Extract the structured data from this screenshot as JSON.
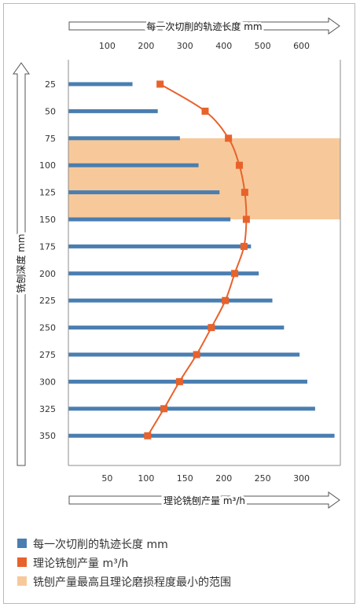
{
  "chart_data": {
    "type": "bar+line",
    "y_axis": {
      "label": "铣刨深度 mm",
      "ticks": [
        25,
        50,
        75,
        100,
        125,
        150,
        175,
        200,
        225,
        250,
        275,
        300,
        325,
        350
      ],
      "range": [
        25,
        350
      ],
      "inverted": true
    },
    "x_top_axis": {
      "label": "每一次切削的轨迹长度 mm",
      "ticks": [
        100,
        200,
        300,
        400,
        500,
        600
      ],
      "range": [
        0,
        700
      ]
    },
    "x_bottom_axis": {
      "label": "理论铣刨产量 m³/h",
      "ticks": [
        50,
        100,
        150,
        200,
        250,
        300
      ],
      "range": [
        0,
        350
      ]
    },
    "series": [
      {
        "name": "每一次切削的轨迹长度 mm",
        "type": "bar",
        "axis": "top",
        "color": "#4a7eb0",
        "depths": [
          25,
          50,
          75,
          100,
          125,
          150,
          175,
          200,
          225,
          250,
          275,
          300,
          325,
          350
        ],
        "values": [
          165,
          230,
          287,
          335,
          389,
          417,
          470,
          490,
          525,
          555,
          595,
          615,
          635,
          685
        ]
      },
      {
        "name": "理论铣刨产量 m³/h",
        "type": "line",
        "axis": "bottom",
        "color": "#e8622c",
        "depths": [
          25,
          50,
          75,
          100,
          125,
          150,
          175,
          200,
          225,
          250,
          275,
          300,
          325,
          350
        ],
        "values": [
          118,
          176,
          206,
          220,
          227,
          229,
          226,
          214,
          202,
          184,
          165,
          143,
          123,
          102
        ]
      }
    ],
    "highlight_band": {
      "name": "铣刨产量最高且理论磨损程度最小的范围",
      "depth_range": [
        75,
        150
      ],
      "color": "#f7c99a"
    }
  },
  "legend": [
    {
      "label": "每一次切削的轨迹长度 mm",
      "color": "#4a7eb0"
    },
    {
      "label": "理论铣刨产量 m³/h",
      "color": "#e8622c"
    },
    {
      "label": "铣刨产量最高且理论磨损程度最小的范围",
      "color": "#f7c99a"
    }
  ]
}
